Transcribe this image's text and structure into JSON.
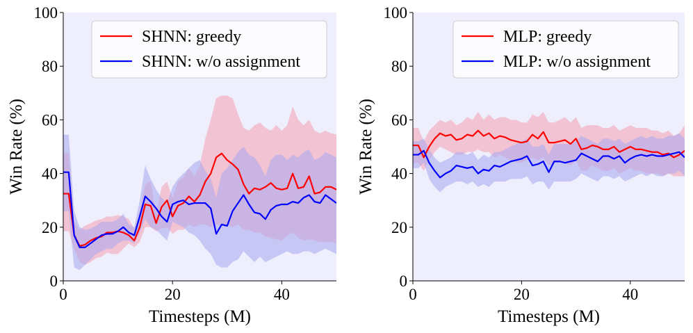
{
  "chart_data": [
    {
      "type": "line",
      "xlabel": "Timesteps (M)",
      "ylabel": "Win Rate (%)",
      "xlim": [
        0,
        50
      ],
      "ylim": [
        0,
        100
      ],
      "xticks": [
        0,
        20,
        40
      ],
      "yticks": [
        0,
        20,
        40,
        60,
        80,
        100
      ],
      "grid": false,
      "legend_position": "top-right",
      "x": [
        0,
        1,
        2,
        3,
        4,
        5,
        6,
        7,
        8,
        9,
        10,
        11,
        12,
        13,
        14,
        15,
        16,
        17,
        18,
        19,
        20,
        21,
        22,
        23,
        24,
        25,
        26,
        27,
        28,
        29,
        30,
        31,
        32,
        33,
        34,
        35,
        36,
        37,
        38,
        39,
        40,
        41,
        42,
        43,
        44,
        45,
        46,
        47,
        48,
        49,
        50
      ],
      "series": [
        {
          "name": "SHNN: greedy",
          "color": "#ff0000",
          "band_color": "#f4a0b0",
          "values": [
            32.5,
            32.5,
            17,
            13,
            13.5,
            15,
            16,
            16.5,
            18,
            18,
            18.5,
            18,
            17,
            15,
            20,
            28.5,
            28,
            21.5,
            27.5,
            30,
            24,
            28,
            29,
            31.5,
            29.5,
            32,
            37,
            40,
            46,
            47.5,
            45,
            43.5,
            41.5,
            36,
            32.5,
            34.5,
            34,
            35,
            36.5,
            34.5,
            34,
            34.5,
            40,
            34.5,
            35,
            39,
            32.5,
            33,
            35,
            35,
            34
          ],
          "lower": [
            18.5,
            18.5,
            12,
            7,
            6,
            7,
            8.5,
            9,
            10.5,
            10,
            10,
            12,
            14,
            12.5,
            14.5,
            20,
            20,
            18.5,
            19.5,
            20,
            17.5,
            19,
            19,
            21,
            20,
            21,
            21,
            20,
            21,
            20.5,
            21,
            20,
            21,
            19,
            19,
            18,
            18,
            16.5,
            16,
            15.5,
            15,
            17,
            18,
            16,
            15,
            15.5,
            15,
            14.5,
            14.5,
            14.5,
            14
          ],
          "upper": [
            47.5,
            47.5,
            22,
            19,
            20.5,
            21.5,
            22.5,
            23,
            24,
            24,
            24.5,
            24,
            23,
            19.5,
            26,
            36,
            37,
            25,
            35,
            37,
            31,
            37,
            38.5,
            42,
            39,
            43,
            53,
            60,
            68,
            69,
            69,
            68,
            62,
            57,
            56,
            58,
            59,
            57,
            56,
            58,
            56,
            58,
            65,
            60,
            58,
            60,
            56,
            55,
            56,
            55,
            54.5
          ]
        },
        {
          "name": "SHNN: w/o assignment",
          "color": "#0000ff",
          "band_color": "#a8a8f0",
          "values": [
            40.5,
            40.5,
            17,
            12.5,
            12.5,
            14,
            15.5,
            17,
            17.5,
            17.5,
            18.5,
            20,
            18,
            17,
            24,
            31.5,
            29.5,
            27,
            24,
            22,
            28.5,
            29.5,
            30,
            28.5,
            29,
            29,
            29,
            27,
            17.5,
            21,
            20.5,
            26,
            29,
            32,
            28.5,
            25.5,
            25,
            23,
            26.5,
            28,
            28.5,
            28.5,
            29.5,
            29,
            31,
            32,
            29.5,
            29,
            32,
            30.5,
            29
          ],
          "lower": [
            26,
            26,
            5,
            4,
            6,
            8,
            10,
            11,
            12,
            12,
            14,
            15,
            15,
            14,
            18,
            23,
            20,
            19,
            17,
            15,
            22,
            21,
            20,
            18,
            17,
            15,
            12,
            10,
            6,
            5,
            5,
            7,
            8,
            11,
            9,
            7,
            9,
            7,
            8,
            9,
            10,
            11,
            10,
            10,
            11,
            11,
            10,
            11,
            12,
            11,
            10
          ],
          "upper": [
            54.5,
            54.5,
            26,
            20,
            19,
            19.5,
            20.5,
            22,
            22,
            22,
            23,
            25,
            21,
            20,
            30,
            43,
            38,
            34,
            31,
            29,
            35,
            38,
            40,
            42,
            44,
            45,
            41,
            38,
            31,
            40,
            42,
            45,
            48,
            50,
            47,
            46,
            43,
            39,
            45,
            47,
            47,
            45,
            47,
            46,
            48,
            49,
            45,
            46,
            48,
            47,
            46
          ]
        }
      ]
    },
    {
      "type": "line",
      "xlabel": "Timesteps (M)",
      "ylabel": "Win Rate (%)",
      "xlim": [
        0,
        50
      ],
      "ylim": [
        0,
        100
      ],
      "xticks": [
        0,
        20,
        40
      ],
      "yticks": [
        0,
        20,
        40,
        60,
        80,
        100
      ],
      "grid": false,
      "legend_position": "top-right",
      "x": [
        0,
        1,
        2,
        3,
        4,
        5,
        6,
        7,
        8,
        9,
        10,
        11,
        12,
        13,
        14,
        15,
        16,
        17,
        18,
        19,
        20,
        21,
        22,
        23,
        24,
        25,
        26,
        27,
        28,
        29,
        30,
        31,
        32,
        33,
        34,
        35,
        36,
        37,
        38,
        39,
        40,
        41,
        42,
        43,
        44,
        45,
        46,
        47,
        48,
        49,
        50
      ],
      "series": [
        {
          "name": "MLP: greedy",
          "color": "#ff0000",
          "band_color": "#f4a0b0",
          "values": [
            50.5,
            50.5,
            46,
            50,
            53,
            55,
            54,
            54.5,
            52.5,
            53,
            54.5,
            54,
            56,
            54,
            55,
            53,
            54,
            53.5,
            52.5,
            52,
            51.5,
            52,
            54.5,
            53,
            55.5,
            51.5,
            51.5,
            52,
            52.5,
            51,
            53,
            49,
            49.5,
            50.5,
            50,
            49,
            49,
            50,
            48,
            49,
            50,
            49,
            49,
            48.5,
            48,
            48,
            47,
            47.5,
            46,
            47,
            48.5
          ],
          "lower": [
            44,
            44,
            41,
            45,
            48,
            50,
            49,
            48,
            47,
            47,
            48,
            48,
            49,
            48,
            48,
            46,
            47,
            46,
            45,
            44,
            44,
            45,
            46,
            45,
            46,
            43,
            44,
            44,
            44,
            43,
            45,
            41,
            41,
            43,
            42,
            41,
            41,
            42,
            40,
            41,
            42,
            41,
            41,
            40,
            40,
            40,
            39,
            40,
            39,
            39,
            39
          ],
          "upper": [
            57,
            57,
            52,
            56,
            58,
            60,
            59,
            60,
            58,
            59,
            61,
            60,
            63,
            60,
            62,
            60,
            61,
            61,
            60,
            60,
            59,
            59,
            62,
            61,
            63,
            59,
            59,
            60,
            61,
            59,
            61,
            57,
            58,
            58,
            58,
            57,
            57,
            58,
            56,
            57,
            58,
            57,
            57,
            57,
            56,
            56,
            55,
            56,
            54,
            55,
            58
          ]
        },
        {
          "name": "MLP: w/o assignment",
          "color": "#0000ff",
          "band_color": "#a8a8f0",
          "values": [
            47,
            47,
            48.5,
            44,
            41,
            38.5,
            40,
            41,
            43,
            42.5,
            42,
            42.5,
            40,
            41.5,
            41,
            43,
            42.5,
            43.5,
            44.5,
            45,
            45.5,
            46.5,
            43,
            43.5,
            44.5,
            40.5,
            44.5,
            44.5,
            44,
            44.5,
            45,
            47.5,
            46.5,
            45.5,
            44.5,
            46.5,
            46.5,
            45.5,
            46.5,
            44,
            45.5,
            46.5,
            47,
            46.5,
            47,
            46.5,
            46.5,
            47,
            47.5,
            48,
            46
          ],
          "lower": [
            42,
            42,
            44,
            38,
            35,
            33,
            35,
            36,
            37,
            37,
            36,
            37,
            35,
            36,
            35,
            37,
            37,
            37,
            38,
            38,
            38,
            39,
            36,
            37,
            37,
            34,
            37,
            37,
            37,
            37,
            38,
            40,
            39,
            38,
            37,
            39,
            39,
            38,
            39,
            37,
            38,
            39,
            40,
            39,
            40,
            39,
            39,
            40,
            40,
            41,
            39
          ],
          "upper": [
            52,
            52,
            53,
            49,
            46,
            44,
            45,
            46,
            48,
            48,
            47,
            48,
            45,
            47,
            46,
            48,
            48,
            49,
            50,
            51,
            52,
            53,
            50,
            50,
            51,
            47,
            51,
            51,
            51,
            51,
            52,
            54,
            53,
            52,
            51,
            53,
            53,
            52,
            53,
            51,
            52,
            53,
            54,
            53,
            54,
            53,
            53,
            54,
            54,
            55,
            53
          ]
        }
      ]
    }
  ]
}
